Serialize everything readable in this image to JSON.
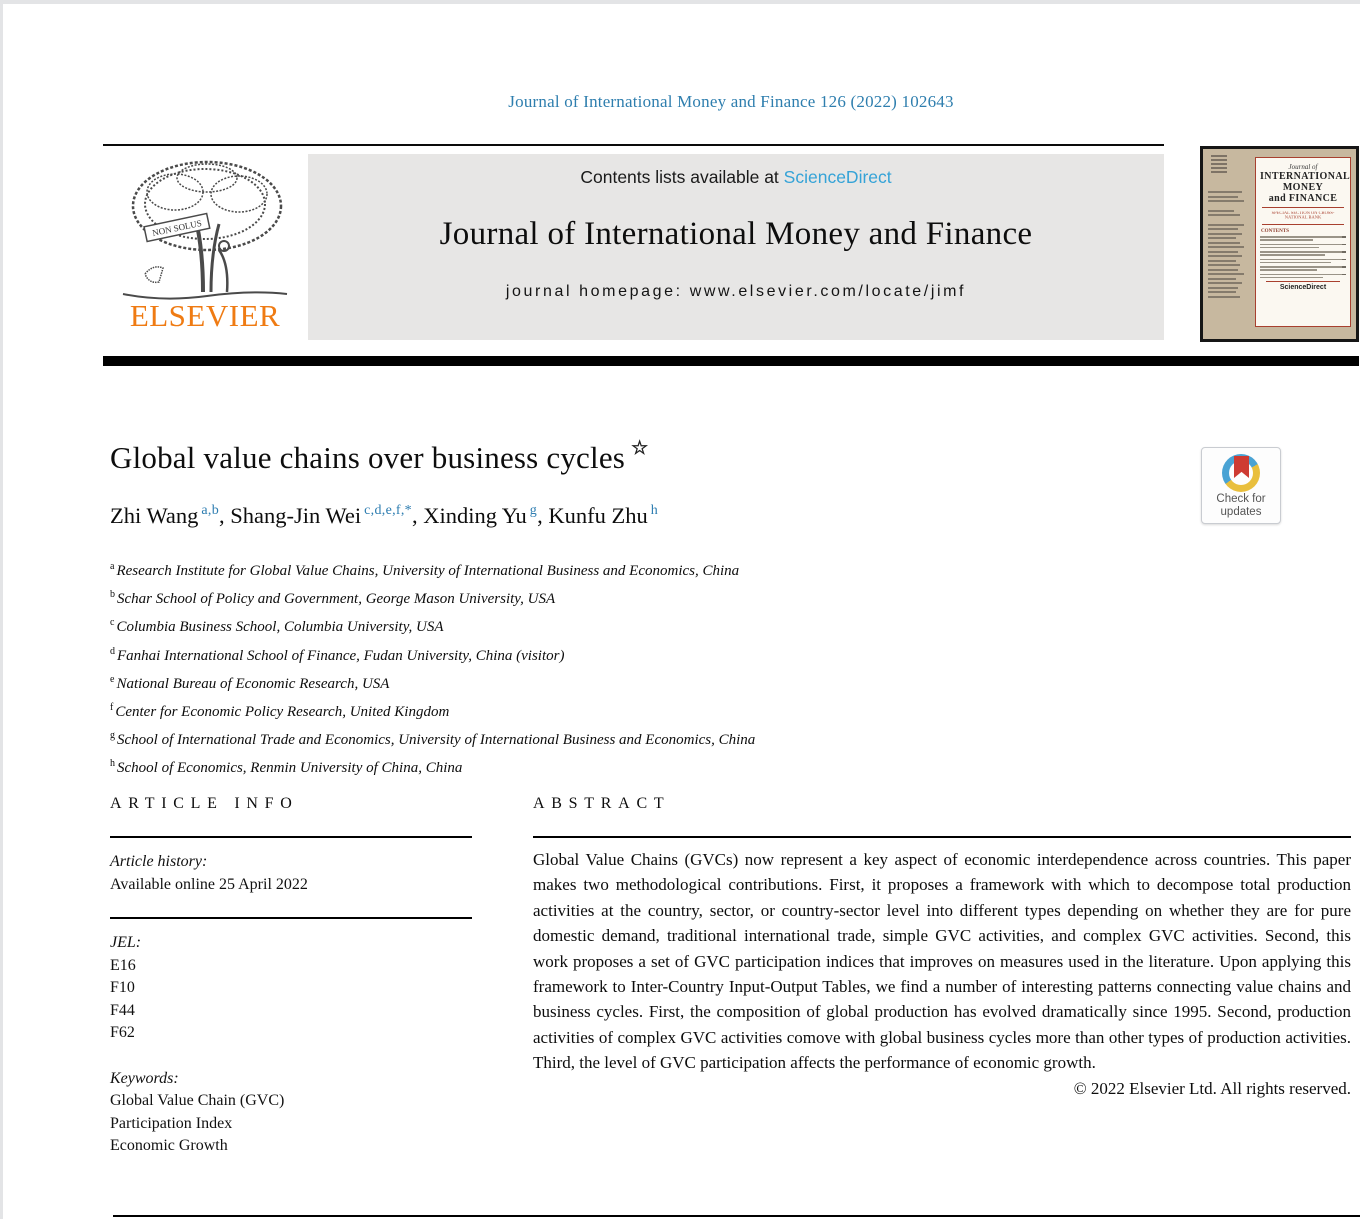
{
  "page": {
    "citation": "Journal of International Money and Finance 126 (2022) 102643"
  },
  "header": {
    "contents_prefix": "Contents lists available at ",
    "sciencedirect": "ScienceDirect",
    "journal_name": "Journal of International Money and Finance",
    "homepage_label": "journal homepage: ",
    "homepage_url": "www.elsevier.com/locate/jimf",
    "publisher": "ELSEVIER",
    "logo_ribbon": "NON SOLUS"
  },
  "cover": {
    "journal_of": "Journal of",
    "title_lines": [
      "INTERNATIONAL",
      "MONEY",
      "and FINANCE"
    ],
    "special_section": "SPECIAL SECTION ON CROSS-NATIONAL BANK",
    "contents_label": "CONTENTS",
    "sciencedirect": "ScienceDirect"
  },
  "badge": {
    "line1": "Check for",
    "line2": "updates"
  },
  "article": {
    "title": "Global value chains over business cycles",
    "title_mark": "☆",
    "authors": [
      {
        "name": "Zhi Wang",
        "sup": "a,b"
      },
      {
        "name": "Shang-Jin Wei",
        "sup": "c,d,e,f,*"
      },
      {
        "name": "Xinding Yu",
        "sup": "g"
      },
      {
        "name": "Kunfu Zhu",
        "sup": "h"
      }
    ],
    "affiliations": [
      {
        "sup": "a",
        "text": "Research Institute for Global Value Chains, University of International Business and Economics, China"
      },
      {
        "sup": "b",
        "text": "Schar School of Policy and Government, George Mason University, USA"
      },
      {
        "sup": "c",
        "text": "Columbia Business School, Columbia University, USA"
      },
      {
        "sup": "d",
        "text": "Fanhai International School of Finance, Fudan University, China (visitor)"
      },
      {
        "sup": "e",
        "text": "National Bureau of Economic Research, USA"
      },
      {
        "sup": "f",
        "text": "Center for Economic Policy Research, United Kingdom"
      },
      {
        "sup": "g",
        "text": "School of International Trade and Economics, University of International Business and Economics, China"
      },
      {
        "sup": "h",
        "text": "School of Economics, Renmin University of China, China"
      }
    ]
  },
  "article_info": {
    "heading": "ARTICLE INFO",
    "history_label": "Article history:",
    "available_online": "Available online 25 April 2022",
    "jel_label": "JEL:",
    "jel_codes": [
      "E16",
      "F10",
      "F44",
      "F62"
    ],
    "keywords_label": "Keywords:",
    "keywords": [
      "Global Value Chain (GVC)",
      "Participation Index",
      "Economic Growth"
    ]
  },
  "abstract": {
    "heading": "ABSTRACT",
    "text": "Global Value Chains (GVCs) now represent a key aspect of economic interdependence across countries. This paper makes two methodological contributions. First, it proposes a framework with which to decompose total production activities at the country, sector, or country-sector level into different types depending on whether they are for pure domestic demand, traditional international trade, simple GVC activities, and complex GVC activities. Second, this work proposes a set of GVC participation indices that improves on measures used in the literature. Upon applying this framework to Inter-Country Input-Output Tables, we find a number of interesting patterns connecting value chains and business cycles. First, the composition of global production has evolved dramatically since 1995. Second, production activities of complex GVC activities comove with global business cycles more than other types of production activities. Third, the level of GVC participation affects the performance of economic growth.",
    "copyright": "© 2022 Elsevier Ltd. All rights reserved."
  },
  "colors": {
    "citation_blue": "#2e7eae",
    "link_blue": "#35a3d7",
    "superscript_blue": "#2c7cb0",
    "elsevier_orange": "#ef7b13",
    "banner_gray": "#e7e6e5",
    "cover_tan": "#c7b89f",
    "cover_red": "#a8402f",
    "badge_red": "#ce3b32",
    "badge_blue": "#4aa3d4",
    "badge_yellow": "#e9bf3d"
  }
}
